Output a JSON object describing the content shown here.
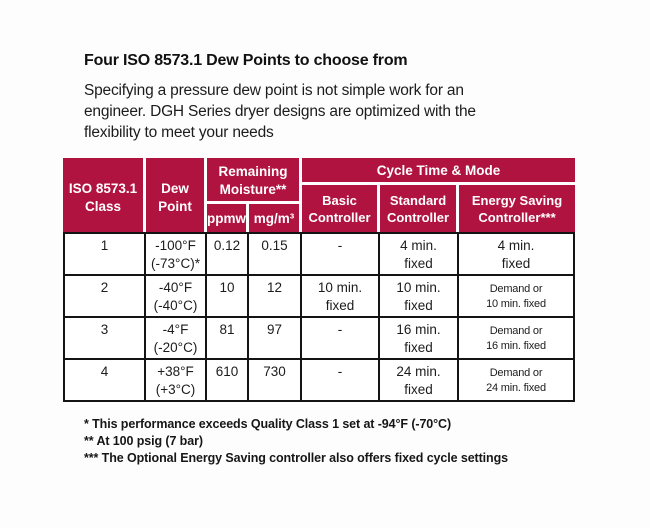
{
  "colors": {
    "header_bg": "#B11341",
    "header_text": "#FFFFFF",
    "border": "#141414",
    "text": "#1C1C1C"
  },
  "heading": {
    "title": "Four ISO 8573.1 Dew Points to choose from",
    "intro": "Specifying a pressure dew point is not simple work for an\nengineer. DGH Series dryer designs are optimized with the\nflexibility to meet your needs"
  },
  "table": {
    "header": {
      "class_label": "ISO 8573.1\nClass",
      "dew_point_label": "Dew\nPoint",
      "moisture_label": "Remaining\nMoisture**",
      "unit_ppmw": "ppmw",
      "unit_mg": "mg/m³",
      "cycle_label": "Cycle Time & Mode",
      "basic_label": "Basic\nController",
      "standard_label": "Standard\nController",
      "energy_label": "Energy Saving\nController***"
    },
    "rows": [
      {
        "iso_class": "1",
        "dew_point": "-100°F\n(-73°C)*",
        "ppmw": "0.12",
        "mg_m3": "0.15",
        "basic": "-",
        "standard": "4 min.\nfixed",
        "energy": "4 min.\nfixed"
      },
      {
        "iso_class": "2",
        "dew_point": "-40°F\n(-40°C)",
        "ppmw": "10",
        "mg_m3": "12",
        "basic": "10 min.\nfixed",
        "standard": "10 min.\nfixed",
        "energy": "Demand or\n10 min. fixed"
      },
      {
        "iso_class": "3",
        "dew_point": "-4°F\n(-20°C)",
        "ppmw": "81",
        "mg_m3": "97",
        "basic": "-",
        "standard": "16 min.\nfixed",
        "energy": "Demand or\n16 min. fixed"
      },
      {
        "iso_class": "4",
        "dew_point": "+38°F\n(+3°C)",
        "ppmw": "610",
        "mg_m3": "730",
        "basic": "-",
        "standard": "24 min.\nfixed",
        "energy": "Demand or\n24 min. fixed"
      }
    ]
  },
  "footnotes": [
    "* This performance exceeds Quality Class 1 set at -94°F (-70°C)",
    "** At 100 psig (7 bar)",
    "*** The Optional Energy Saving controller also offers fixed cycle settings"
  ]
}
